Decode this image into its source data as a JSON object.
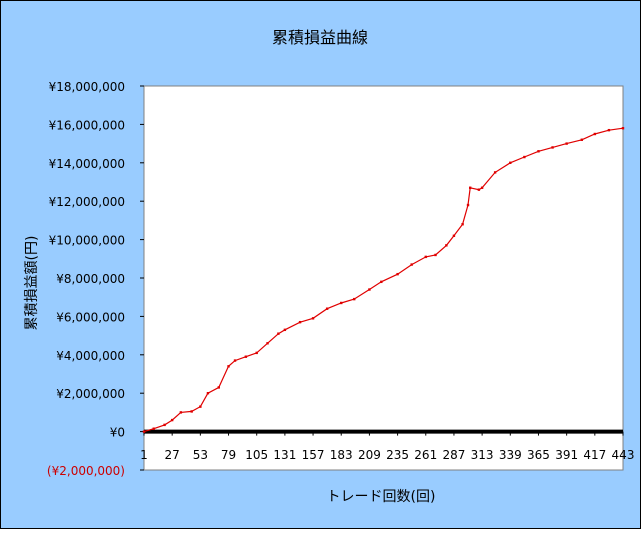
{
  "chart_data": {
    "type": "line",
    "title": "累積損益曲線",
    "xlabel": "トレード回数(回)",
    "ylabel": "累積損益額(円)",
    "ylim": [
      -2000000,
      18000000
    ],
    "xlim": [
      1,
      443
    ],
    "y_ticks": [
      {
        "value": 18000000,
        "label": "¥18,000,000"
      },
      {
        "value": 16000000,
        "label": "¥16,000,000"
      },
      {
        "value": 14000000,
        "label": "¥14,000,000"
      },
      {
        "value": 12000000,
        "label": "¥12,000,000"
      },
      {
        "value": 10000000,
        "label": "¥10,000,000"
      },
      {
        "value": 8000000,
        "label": "¥8,000,000"
      },
      {
        "value": 6000000,
        "label": "¥6,000,000"
      },
      {
        "value": 4000000,
        "label": "¥4,000,000"
      },
      {
        "value": 2000000,
        "label": "¥2,000,000"
      },
      {
        "value": 0,
        "label": "¥0"
      },
      {
        "value": -2000000,
        "label": "(¥2,000,000)"
      }
    ],
    "x_ticks": [
      "1",
      "27",
      "53",
      "79",
      "105",
      "131",
      "157",
      "183",
      "209",
      "235",
      "261",
      "287",
      "313",
      "339",
      "365",
      "391",
      "417",
      "443"
    ],
    "grid": false,
    "legend": "none",
    "series": [
      {
        "x": [
          1,
          10,
          20,
          27,
          35,
          45,
          53,
          60,
          70,
          79,
          85,
          95,
          105,
          115,
          125,
          131,
          145,
          157,
          170,
          183,
          195,
          209,
          220,
          235,
          248,
          261,
          270,
          280,
          287,
          295,
          300,
          302,
          310,
          313,
          325,
          339,
          352,
          365,
          378,
          391,
          405,
          417,
          430,
          443
        ],
        "y": [
          0,
          150000,
          350000,
          600000,
          1000000,
          1050000,
          1300000,
          2000000,
          2300000,
          3400000,
          3700000,
          3900000,
          4100000,
          4600000,
          5100000,
          5300000,
          5700000,
          5900000,
          6400000,
          6700000,
          6900000,
          7400000,
          7800000,
          8200000,
          8700000,
          9100000,
          9200000,
          9700000,
          10200000,
          10800000,
          11800000,
          12700000,
          12600000,
          12700000,
          13500000,
          14000000,
          14300000,
          14600000,
          14800000,
          15000000,
          15200000,
          15500000,
          15700000,
          15800000
        ]
      },
      {
        "x": [
          1,
          443
        ],
        "y": [
          0,
          0
        ]
      }
    ],
    "colors": {
      "background": "#99CCFF",
      "plot_area": "#FFFFFF",
      "line": "#E00000",
      "zero_band": "#000000",
      "negative_label": "#CC0000"
    }
  }
}
